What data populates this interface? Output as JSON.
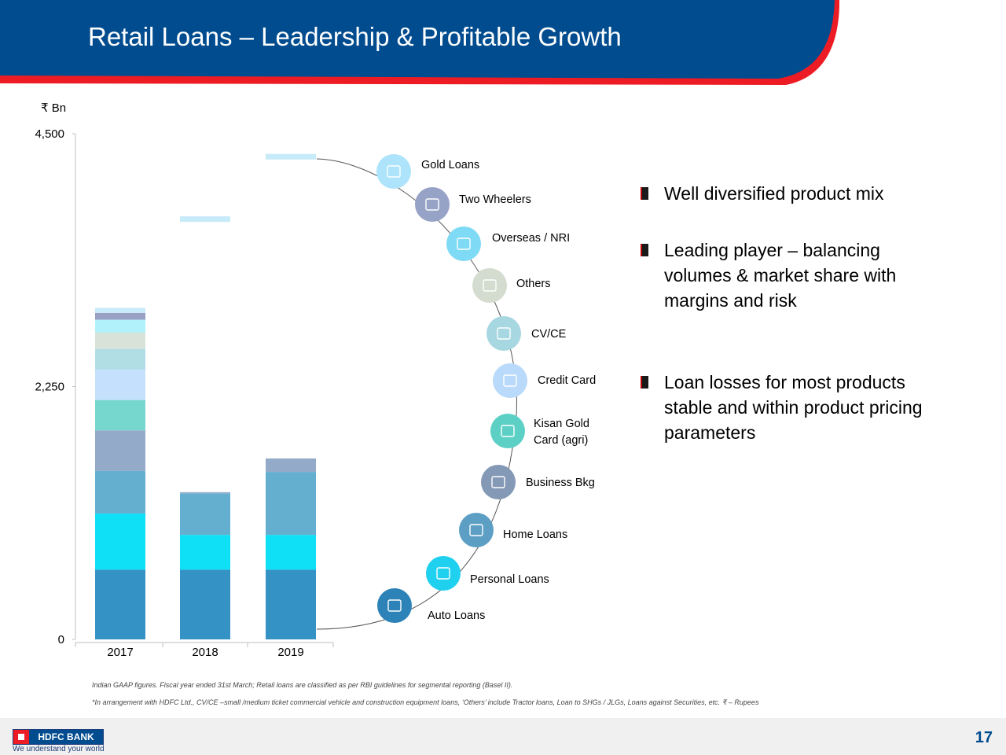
{
  "header": {
    "title": "Retail Loans – Leadership & Profitable  Growth"
  },
  "unit_label": "₹ Bn",
  "chart_data": {
    "type": "bar",
    "stacked": true,
    "categories": [
      "2017",
      "2018",
      "2019"
    ],
    "y_ticks": [
      "0",
      "2,250",
      "4,500"
    ],
    "ylim": [
      0,
      4500
    ],
    "series": [
      {
        "name": "Auto Loans",
        "values": [
          620,
          620,
          620
        ],
        "color": "#3492c4"
      },
      {
        "name": "Personal Loans",
        "values": [
          500,
          310,
          310
        ],
        "color": "#10e0f5"
      },
      {
        "name": "Home Loans",
        "values": [
          380,
          370,
          560
        ],
        "color": "#64afd0"
      },
      {
        "name": "Business Bkg",
        "values": [
          360,
          10,
          120
        ],
        "color": "#93aac8"
      },
      {
        "name": "Kisan Gold Card (agri)",
        "values": [
          270,
          0,
          0
        ],
        "color": "#76d7cf"
      },
      {
        "name": "Credit Card",
        "values": [
          270,
          0,
          0
        ],
        "color": "#c5e0fc"
      },
      {
        "name": "CV/CE",
        "values": [
          185,
          0,
          0
        ],
        "color": "#b1dde5"
      },
      {
        "name": "Others",
        "values": [
          145,
          0,
          0
        ],
        "color": "#d8e2d8"
      },
      {
        "name": "Overseas / NRI",
        "values": [
          115,
          0,
          0
        ],
        "color": "#b1f1fb"
      },
      {
        "name": "Two Wheelers",
        "values": [
          60,
          0,
          0
        ],
        "color": "#9a9fc4"
      },
      {
        "name": "Gold Loans",
        "values": [
          45,
          0,
          0
        ],
        "color": "#c8ebfa"
      }
    ],
    "floating_segments": [
      {
        "category": "2018",
        "from": 3715,
        "to": 3765,
        "color": "#c8ebfa"
      },
      {
        "category": "2019",
        "from": 4270,
        "to": 4320,
        "color": "#c8ebfa"
      }
    ],
    "legend_placement": "right arc"
  },
  "legend": [
    {
      "label": "Gold Loans",
      "color": "#ade4fb",
      "icon": "gold-bars-icon"
    },
    {
      "label": "Two Wheelers",
      "color": "#97a3c6",
      "icon": "scooter-icon"
    },
    {
      "label": "Overseas / NRI",
      "color": "#7fdaf5",
      "icon": "airplane-icon"
    },
    {
      "label": "Others",
      "color": "#d3dcce",
      "icon": "document-icon"
    },
    {
      "label": "CV/CE",
      "color": "#a7d7e0",
      "icon": "truck-icon"
    },
    {
      "label": "Credit Card",
      "color": "#b9dafa",
      "icon": "credit-card-icon"
    },
    {
      "label": "Kisan Gold\nCard (agri)",
      "color": "#5cd0c5",
      "icon": "id-card-icon"
    },
    {
      "label": "Business Bkg",
      "color": "#8499b6",
      "icon": "briefcase-icon"
    },
    {
      "label": "Home Loans",
      "color": "#5d9fc4",
      "icon": "house-icon"
    },
    {
      "label": "Personal Loans",
      "color": "#1fd0ef",
      "icon": "hand-cash-icon"
    },
    {
      "label": "Auto Loans",
      "color": "#2d82b7",
      "icon": "car-icon"
    }
  ],
  "bullets": [
    "Well diversified product mix",
    "Leading player – balancing volumes & market share with margins and risk",
    "Loan losses for most products stable and within product pricing parameters"
  ],
  "footnotes": {
    "line1": "Indian GAAP figures. Fiscal year ended 31st March; Retail loans are classified as per RBI guidelines for segmental reporting (Basel II).",
    "line2": "*In arrangement with HDFC Ltd., CV/CE –small /medium ticket commercial vehicle and construction equipment loans, ‘Others’  include Tractor loans, Loan to SHGs / JLGs, Loans against Securities, etc. ₹ –  Rupees"
  },
  "footer": {
    "brand": "HDFC BANK",
    "tagline": "We understand your world",
    "page_number": "17"
  },
  "colors": {
    "header_blue": "#004c8f",
    "header_red": "#ed1c24"
  }
}
